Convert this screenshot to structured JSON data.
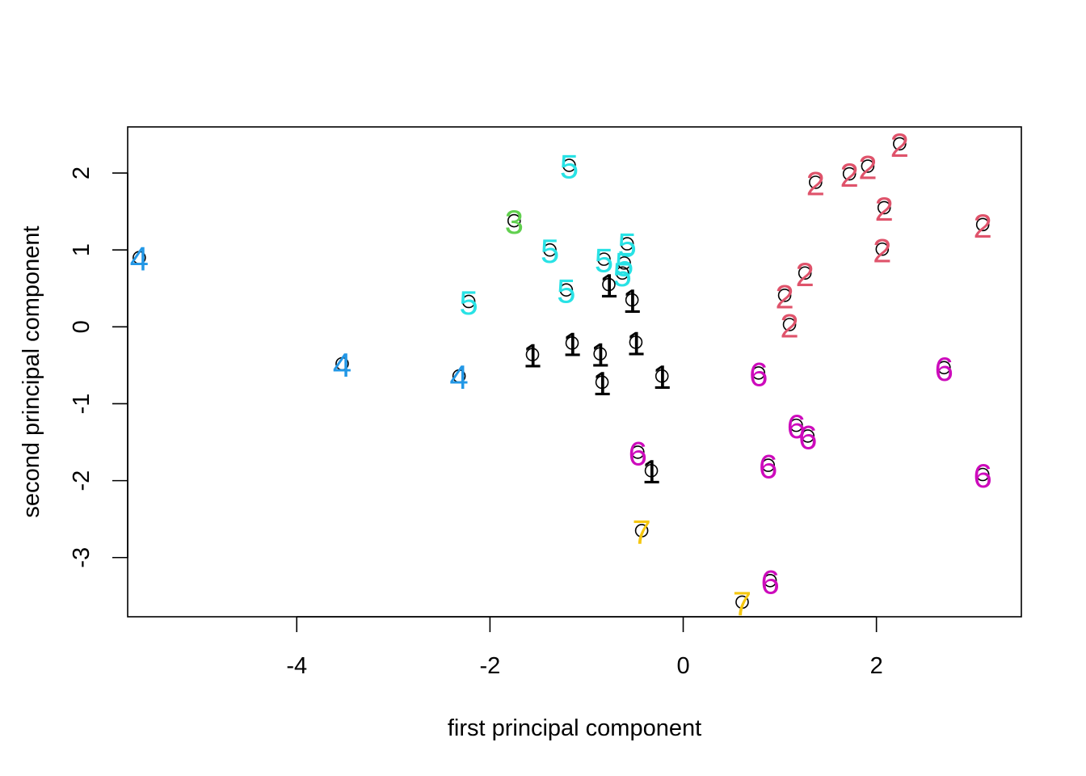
{
  "chart_data": {
    "type": "scatter",
    "title": "",
    "xlabel": "first principal component",
    "ylabel": "second principal component",
    "xlim": [
      -5.75,
      3.5
    ],
    "ylim": [
      -3.77,
      2.6
    ],
    "xticks": [
      -4,
      -2,
      0,
      2
    ],
    "yticks": [
      -3,
      -2,
      -1,
      0,
      1,
      2
    ],
    "xtick_labels": [
      "-4",
      "-2",
      "0",
      "2"
    ],
    "ytick_labels": [
      "-3",
      "-2",
      "-1",
      "0",
      "1",
      "2"
    ],
    "grid": false,
    "legend": "none",
    "marker": "open circle",
    "group_colors": {
      "1": "#000000",
      "2": "#DF536B",
      "3": "#61D04F",
      "4": "#2297E6",
      "5": "#28E2E5",
      "6": "#CD0BBC",
      "7": "#F5C710"
    },
    "points": [
      {
        "x": -5.63,
        "y": 0.9,
        "group": "4"
      },
      {
        "x": -3.53,
        "y": -0.48,
        "group": "4"
      },
      {
        "x": -2.32,
        "y": -0.64,
        "group": "4"
      },
      {
        "x": -1.75,
        "y": 1.38,
        "group": "3"
      },
      {
        "x": -1.18,
        "y": 2.1,
        "group": "5"
      },
      {
        "x": -1.38,
        "y": 1.0,
        "group": "5"
      },
      {
        "x": -2.22,
        "y": 0.33,
        "group": "5"
      },
      {
        "x": -1.21,
        "y": 0.48,
        "group": "5"
      },
      {
        "x": -0.82,
        "y": 0.88,
        "group": "5"
      },
      {
        "x": -0.58,
        "y": 1.08,
        "group": "5"
      },
      {
        "x": -0.61,
        "y": 0.83,
        "group": "5"
      },
      {
        "x": -0.63,
        "y": 0.7,
        "group": "5"
      },
      {
        "x": -0.77,
        "y": 0.55,
        "group": "1"
      },
      {
        "x": -0.53,
        "y": 0.35,
        "group": "1"
      },
      {
        "x": -1.56,
        "y": -0.36,
        "group": "1"
      },
      {
        "x": -1.15,
        "y": -0.21,
        "group": "1"
      },
      {
        "x": -0.86,
        "y": -0.35,
        "group": "1"
      },
      {
        "x": -0.49,
        "y": -0.2,
        "group": "1"
      },
      {
        "x": -0.84,
        "y": -0.72,
        "group": "1"
      },
      {
        "x": -0.22,
        "y": -0.64,
        "group": "1"
      },
      {
        "x": -0.33,
        "y": -1.87,
        "group": "1"
      },
      {
        "x": 2.24,
        "y": 2.38,
        "group": "2"
      },
      {
        "x": 1.91,
        "y": 2.09,
        "group": "2"
      },
      {
        "x": 1.72,
        "y": 1.99,
        "group": "2"
      },
      {
        "x": 1.37,
        "y": 1.88,
        "group": "2"
      },
      {
        "x": 2.08,
        "y": 1.55,
        "group": "2"
      },
      {
        "x": 3.1,
        "y": 1.33,
        "group": "2"
      },
      {
        "x": 2.06,
        "y": 1.01,
        "group": "2"
      },
      {
        "x": 1.26,
        "y": 0.7,
        "group": "2"
      },
      {
        "x": 1.05,
        "y": 0.41,
        "group": "2"
      },
      {
        "x": 1.1,
        "y": 0.03,
        "group": "2"
      },
      {
        "x": 0.78,
        "y": -0.6,
        "group": "6"
      },
      {
        "x": 2.7,
        "y": -0.53,
        "group": "6"
      },
      {
        "x": 1.17,
        "y": -1.28,
        "group": "6"
      },
      {
        "x": 1.29,
        "y": -1.42,
        "group": "6"
      },
      {
        "x": 0.88,
        "y": -1.8,
        "group": "6"
      },
      {
        "x": 3.1,
        "y": -1.92,
        "group": "6"
      },
      {
        "x": -0.47,
        "y": -1.63,
        "group": "6"
      },
      {
        "x": 0.9,
        "y": -3.3,
        "group": "6"
      },
      {
        "x": -0.43,
        "y": -2.65,
        "group": "7"
      },
      {
        "x": 0.61,
        "y": -3.58,
        "group": "7"
      }
    ]
  }
}
